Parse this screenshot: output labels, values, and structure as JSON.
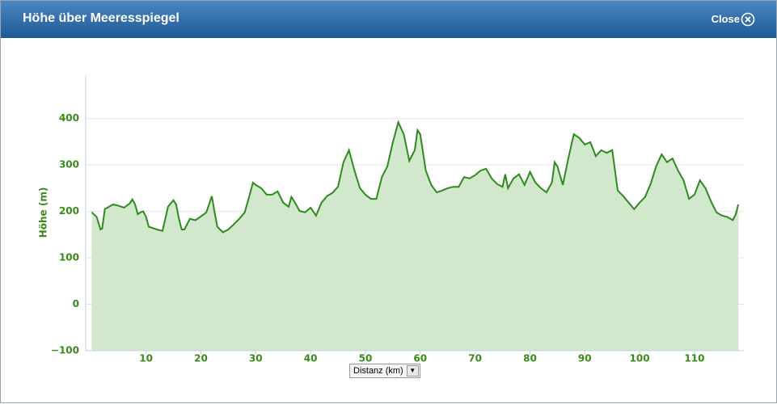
{
  "dialog": {
    "title": "Höhe über Meeresspiegel",
    "close": "Close"
  },
  "chart_data": {
    "type": "area",
    "y_label": "Höhe (m)",
    "x_label": "Distanz (km)",
    "xlim": [
      -1,
      119
    ],
    "xticks": [
      10,
      20,
      30,
      40,
      50,
      60,
      70,
      80,
      90,
      100,
      110
    ],
    "ylim": [
      -100,
      490
    ],
    "yticks": [
      {
        "value": -100,
        "label": "−100"
      },
      0,
      100,
      200,
      300,
      400
    ],
    "grid": true,
    "color": "#2e8a1e",
    "x": [
      0.1,
      1,
      1.7,
      2,
      2.5,
      4,
      5,
      6,
      7,
      7.5,
      8,
      8.5,
      9,
      9.5,
      10,
      10.5,
      12,
      13,
      14,
      15,
      15.5,
      16,
      16.5,
      17,
      18,
      19,
      20,
      21,
      22,
      22.5,
      23,
      24,
      25,
      26,
      27,
      28,
      29,
      29.5,
      30,
      31,
      32,
      33,
      34,
      35,
      36,
      36.5,
      37,
      38,
      39,
      40,
      41,
      42,
      43,
      44,
      45,
      46,
      47,
      48,
      49,
      50,
      51,
      52,
      53,
      54,
      55,
      56,
      57,
      58,
      59,
      59.5,
      60,
      61,
      62,
      63,
      64,
      65,
      66,
      67,
      68,
      69,
      70,
      71,
      72,
      73,
      74,
      75,
      75.5,
      76,
      77,
      78,
      79,
      80,
      81,
      82,
      83,
      84,
      84.5,
      85,
      86,
      87,
      88,
      89,
      90,
      91,
      92,
      93,
      94,
      95,
      96,
      97,
      98,
      99,
      100,
      101,
      102,
      103,
      104,
      105,
      106,
      107,
      108,
      109,
      110,
      111,
      112,
      113,
      114,
      115,
      116,
      117,
      117.5,
      118
    ],
    "values": [
      198,
      188,
      161,
      163,
      205,
      215,
      212,
      208,
      217,
      226,
      215,
      194,
      198,
      200,
      188,
      167,
      161,
      158,
      210,
      224,
      215,
      184,
      161,
      161,
      184,
      181,
      189,
      198,
      233,
      198,
      167,
      155,
      161,
      172,
      184,
      198,
      240,
      262,
      257,
      250,
      236,
      236,
      243,
      219,
      210,
      231,
      222,
      201,
      198,
      208,
      191,
      219,
      233,
      240,
      253,
      306,
      332,
      288,
      250,
      236,
      227,
      227,
      274,
      297,
      349,
      392,
      366,
      309,
      332,
      375,
      366,
      288,
      257,
      241,
      245,
      250,
      253,
      253,
      274,
      271,
      278,
      288,
      292,
      271,
      259,
      253,
      280,
      250,
      271,
      280,
      257,
      285,
      262,
      250,
      241,
      262,
      306,
      297,
      257,
      314,
      366,
      358,
      344,
      349,
      319,
      332,
      326,
      332,
      245,
      233,
      219,
      205,
      219,
      231,
      259,
      297,
      323,
      306,
      314,
      288,
      267,
      227,
      236,
      267,
      250,
      222,
      198,
      191,
      188,
      181,
      193,
      215
    ]
  }
}
